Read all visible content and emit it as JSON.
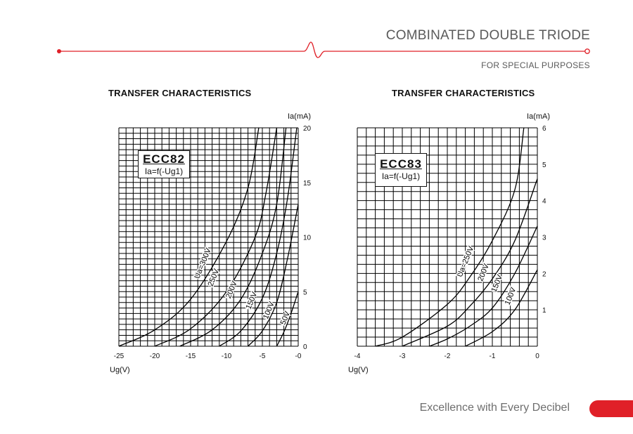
{
  "header": {
    "title": "COMBINATED DOUBLE TRIODE",
    "subtitle": "FOR SPECIAL PURPOSES",
    "accent_color": "#e02028"
  },
  "footer": {
    "tagline": "Excellence with Every Decibel",
    "pill_color": "#e02028"
  },
  "chart_data": [
    {
      "type": "line",
      "title": "TRANSFER CHARACTERISTICS",
      "model": "ECC82",
      "formula": "Ia=f(-Ug1)",
      "xlabel": "Ug(V)",
      "ylabel": "Ia(mA)",
      "xlim": [
        -25,
        0
      ],
      "ylim": [
        0,
        20
      ],
      "x_ticks": [
        "-25",
        "-20",
        "-15",
        "-10",
        "-5",
        "-0"
      ],
      "y_ticks": [
        "0",
        "5",
        "10",
        "15",
        "20"
      ],
      "grid": true,
      "series": [
        {
          "name": "Ua=300V",
          "x": [
            -25,
            -20,
            -15,
            -10,
            -7,
            -5.5
          ],
          "y": [
            0,
            1.5,
            4.3,
            9.6,
            14.5,
            20
          ]
        },
        {
          "name": "250V",
          "x": [
            -20,
            -15,
            -10,
            -6,
            -4.5,
            -3
          ],
          "y": [
            0,
            1.6,
            5,
            10,
            14,
            20
          ]
        },
        {
          "name": "200V",
          "x": [
            -16.5,
            -12,
            -8,
            -5,
            -3,
            -1.7
          ],
          "y": [
            0,
            1.5,
            4.3,
            8.5,
            13,
            20
          ]
        },
        {
          "name": "150V",
          "x": [
            -11,
            -8,
            -5,
            -3,
            -1.5,
            -0.2
          ],
          "y": [
            0,
            1.4,
            4.4,
            8.5,
            13.5,
            20
          ]
        },
        {
          "name": "100V",
          "x": [
            -7,
            -5,
            -3,
            -1.5,
            0
          ],
          "y": [
            0,
            1.4,
            4,
            8,
            13
          ]
        },
        {
          "name": "50V",
          "x": [
            -3,
            -2,
            -1,
            0
          ],
          "y": [
            0,
            1.3,
            3,
            5
          ]
        }
      ]
    },
    {
      "type": "line",
      "title": "TRANSFER CHARACTERISTICS",
      "model": "ECC83",
      "formula": "Ia=f(-Ug1)",
      "xlabel": "Ug(V)",
      "ylabel": "Ia(mA)",
      "xlim": [
        -4,
        0
      ],
      "ylim": [
        0,
        6
      ],
      "x_ticks": [
        "-4",
        "-3",
        "-2",
        "-1",
        "0"
      ],
      "y_ticks": [
        "1",
        "2",
        "3",
        "4",
        "5",
        "6"
      ],
      "grid": true,
      "series": [
        {
          "name": "Ua=250V",
          "x": [
            -3.6,
            -3,
            -2,
            -1.5,
            -1,
            -0.5,
            -0.3
          ],
          "y": [
            0,
            0.25,
            1.15,
            1.9,
            2.9,
            4.3,
            6
          ]
        },
        {
          "name": "200V",
          "x": [
            -3,
            -2,
            -1.5,
            -1,
            -0.5,
            0
          ],
          "y": [
            0,
            0.55,
            1.1,
            1.85,
            2.9,
            4.6
          ]
        },
        {
          "name": "150V",
          "x": [
            -2.4,
            -2,
            -1.5,
            -1,
            -0.5,
            0
          ],
          "y": [
            0,
            0.2,
            0.55,
            1.05,
            2,
            3.3
          ]
        },
        {
          "name": "100V",
          "x": [
            -1.6,
            -1,
            -0.5,
            0
          ],
          "y": [
            0,
            0.4,
            1,
            2.1
          ]
        }
      ]
    }
  ]
}
